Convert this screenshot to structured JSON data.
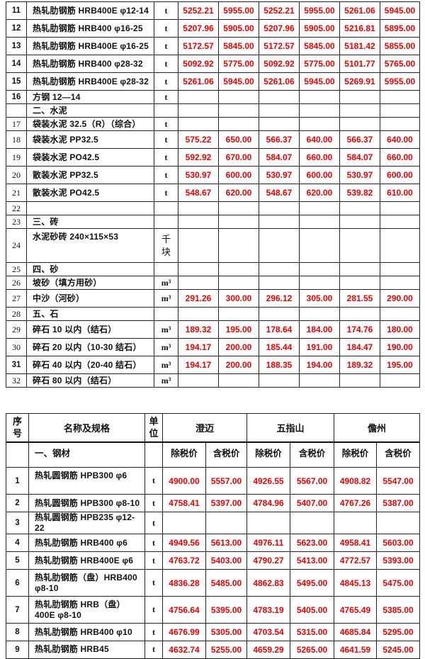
{
  "colors": {
    "price_red": "#ee0000",
    "text": "#111111",
    "border": "#222222",
    "background": "#ffffff"
  },
  "table1": {
    "description": "continuation-rows-11-32",
    "rows": [
      {
        "no": "11",
        "no_bold": true,
        "name": "热轧肋钢筋 HRB400E φ12-14",
        "unit": "t",
        "values": [
          "5252.21",
          "5955.00",
          "5252.21",
          "5955.00",
          "5261.06",
          "5945.00"
        ]
      },
      {
        "no": "12",
        "no_bold": true,
        "name": "热轧肋钢筋 HRB400 φ16-25",
        "unit": "t",
        "values": [
          "5207.96",
          "5905.00",
          "5207.96",
          "5905.00",
          "5216.81",
          "5895.00"
        ]
      },
      {
        "no": "13",
        "no_bold": true,
        "name": "热轧肋钢筋 HRB400E φ16-25",
        "unit": "t",
        "values": [
          "5172.57",
          "5845.00",
          "5172.57",
          "5845.00",
          "5181.42",
          "5855.00"
        ]
      },
      {
        "no": "14",
        "no_bold": true,
        "name": "热轧肋钢筋 HRB400 φ28-32",
        "unit": "t",
        "values": [
          "5092.92",
          "5775.00",
          "5092.92",
          "5775.00",
          "5101.77",
          "5765.00"
        ]
      },
      {
        "no": "15",
        "no_bold": true,
        "name": "热轧肋钢筋 HRB400E φ28-32",
        "unit": "t",
        "values": [
          "5261.06",
          "5945.00",
          "5261.06",
          "5945.00",
          "5269.91",
          "5955.00"
        ]
      },
      {
        "no": "16",
        "no_bold": true,
        "name": "方钢 12—14",
        "unit": "t",
        "values": []
      },
      {
        "no": "",
        "name": "二、水泥",
        "unit": "",
        "values": []
      },
      {
        "no": "17",
        "name": "袋装水泥 32.5（R）（综合）",
        "unit": "t",
        "values": []
      },
      {
        "no": "18",
        "name": "袋装水泥 PP32.5",
        "unit": "t",
        "values": [
          "575.22",
          "650.00",
          "566.37",
          "640.00",
          "566.37",
          "640.00"
        ]
      },
      {
        "no": "19",
        "name": "袋装水泥 PO42.5",
        "unit": "t",
        "values": [
          "592.92",
          "670.00",
          "584.07",
          "660.00",
          "584.07",
          "660.00"
        ]
      },
      {
        "no": "20",
        "name": "散装水泥 PP32.5",
        "unit": "t",
        "values": [
          "530.97",
          "600.00",
          "530.97",
          "600.00",
          "530.97",
          "600.00"
        ]
      },
      {
        "no": "21",
        "name": "散装水泥 PO42.5",
        "unit": "t",
        "values": [
          "548.67",
          "620.00",
          "548.67",
          "620.00",
          "539.82",
          "610.00"
        ]
      },
      {
        "no": "22",
        "name": "",
        "unit": "",
        "values": []
      },
      {
        "no": "23",
        "name": "三、砖",
        "unit": "",
        "values": []
      },
      {
        "no": "24",
        "name": "水泥砂砖 240×115×53",
        "unit": "千块",
        "unit_stack": true,
        "tall": true,
        "values": []
      },
      {
        "no": "25",
        "name": "四、砂",
        "unit": "",
        "values": []
      },
      {
        "no": "26",
        "name": "坡砂（填方用砂）",
        "unit": "m³",
        "values": []
      },
      {
        "no": "27",
        "name": "中沙（河砂）",
        "unit": "m³",
        "values": [
          "291.26",
          "300.00",
          "296.12",
          "305.00",
          "281.55",
          "290.00"
        ]
      },
      {
        "no": "28",
        "name": "五、石",
        "unit": "",
        "values": []
      },
      {
        "no": "29",
        "name": "碎石 10 以内（结石）",
        "unit": "m³",
        "values": [
          "189.32",
          "195.00",
          "178.64",
          "184.00",
          "174.76",
          "180.00"
        ]
      },
      {
        "no": "30",
        "name": "碎石 20 以内（10-30 结石）",
        "unit": "m³",
        "values": [
          "194.17",
          "200.00",
          "185.44",
          "191.00",
          "184.47",
          "190.00"
        ]
      },
      {
        "no": "31",
        "no_bold": true,
        "name": "碎石 40 以内（20-40 结石）",
        "unit": "m³",
        "values": [
          "194.17",
          "200.00",
          "188.35",
          "194.00",
          "189.32",
          "195.00"
        ]
      },
      {
        "no": "32",
        "name": "碎石 80 以内（结石）",
        "unit": "m³",
        "values": []
      }
    ]
  },
  "table2": {
    "header": {
      "no": "序号",
      "name": "名称及规格",
      "unit": "单位",
      "cities": [
        "澄迈",
        "五指山",
        "儋州"
      ],
      "price_labels": [
        "除税价",
        "含税价"
      ],
      "category": "一、钢材"
    },
    "rows": [
      {
        "no": "1",
        "no_bold": true,
        "tall": true,
        "name": "热轧圆钢筋 HPB300 φ6",
        "unit": "t",
        "values": [
          "4900.00",
          "5557.00",
          "4926.55",
          "5567.00",
          "4908.82",
          "5547.00"
        ]
      },
      {
        "no": "2",
        "no_bold": true,
        "name": "热轧圆钢筋 HPB300 φ8-10",
        "unit": "t",
        "values": [
          "4758.41",
          "5397.00",
          "4784.96",
          "5407.00",
          "4767.26",
          "5387.00"
        ]
      },
      {
        "no": "3",
        "no_bold": true,
        "name": "热轧圆钢筋 HPB235 φ12-22",
        "unit": "t",
        "values": []
      },
      {
        "no": "4",
        "no_bold": true,
        "name": "热轧肋钢筋 HRB400 φ6",
        "unit": "t",
        "values": [
          "4949.56",
          "5613.00",
          "4976.11",
          "5623.00",
          "4958.41",
          "5603.00"
        ]
      },
      {
        "no": "5",
        "no_bold": true,
        "name": "热轧肋钢筋 HRB400E φ6",
        "unit": "t",
        "values": [
          "4763.72",
          "5403.00",
          "4790.27",
          "5413.00",
          "4772.57",
          "5393.00"
        ]
      },
      {
        "no": "6",
        "no_bold": true,
        "tall": true,
        "name": "热轧肋钢筋（盘）HRB400 φ8-10",
        "unit": "t",
        "values": [
          "4836.28",
          "5485.00",
          "4862.83",
          "5495.00",
          "4845.13",
          "5475.00"
        ]
      },
      {
        "no": "7",
        "no_bold": true,
        "tall": true,
        "name": "热轧肋钢筋 HRB（盘）400E φ8-10",
        "unit": "t",
        "values": [
          "4756.64",
          "5395.00",
          "4783.19",
          "5405.00",
          "4765.49",
          "5385.00"
        ]
      },
      {
        "no": "8",
        "no_bold": true,
        "name": "热轧肋钢筋 HRB400 φ10",
        "unit": "t",
        "values": [
          "4676.99",
          "5305.00",
          "4703.54",
          "5315.00",
          "4685.84",
          "5295.00"
        ]
      },
      {
        "no": "9",
        "no_bold": true,
        "name": "热轧肋钢筋 HRB45",
        "unit": "t",
        "values": [
          "4632.74",
          "5255.00",
          "4659.29",
          "5265.00",
          "4641.59",
          "5245.00"
        ]
      }
    ]
  }
}
